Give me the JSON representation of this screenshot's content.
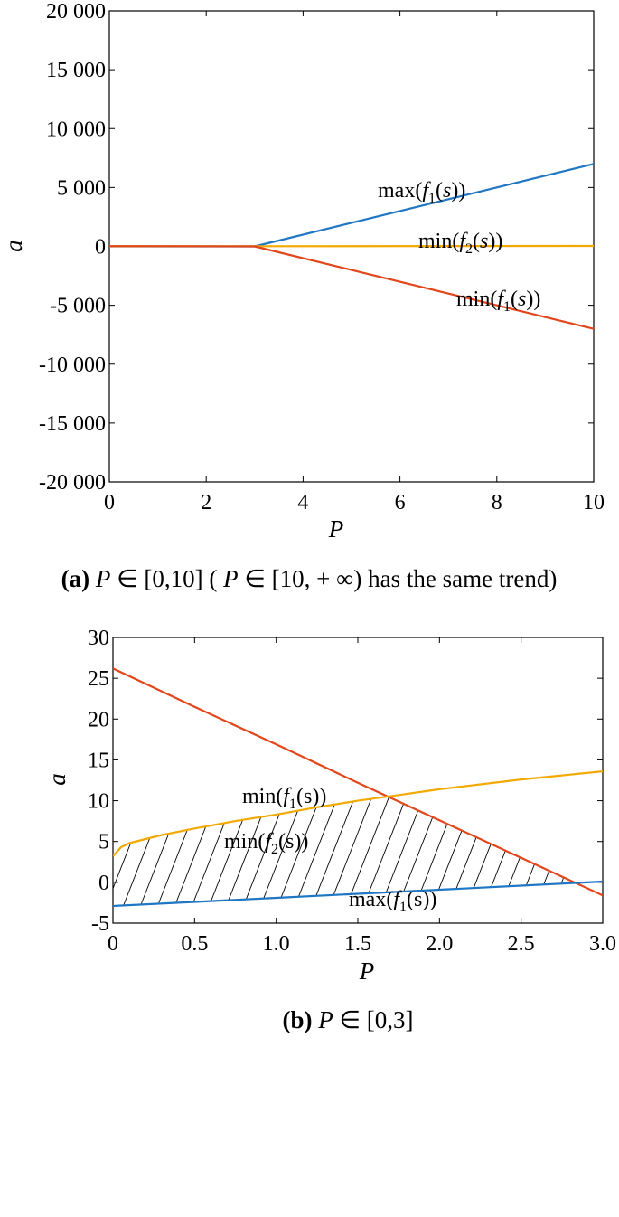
{
  "chart_data": [
    {
      "type": "line",
      "xlabel": "P",
      "ylabel": "a",
      "xlim": [
        0,
        10
      ],
      "ylim": [
        -20000,
        20000
      ],
      "xticks": [
        0,
        2,
        4,
        6,
        8,
        10
      ],
      "xtick_labels": [
        "0",
        "2",
        "4",
        "6",
        "8",
        "10"
      ],
      "yticks": [
        20000,
        15000,
        10000,
        5000,
        0,
        -5000,
        -10000,
        -15000,
        -20000
      ],
      "ytick_labels": [
        "20 000",
        "15 000",
        "10 000",
        "5 000",
        "0",
        "-5 000",
        "-10 000",
        "-15 000",
        "-20 000"
      ],
      "series": [
        {
          "name": "max(f1(s))",
          "color": "#1f77c4",
          "x": [
            0,
            3,
            10
          ],
          "y": [
            -3,
            0,
            7000
          ]
        },
        {
          "name": "min(f2(s))",
          "color": "#f2a900",
          "x": [
            0,
            3,
            10
          ],
          "y": [
            4,
            13,
            40
          ]
        },
        {
          "name": "min(f1(s))",
          "color": "#e2461a",
          "x": [
            0,
            3,
            10
          ],
          "y": [
            26,
            -1,
            -7000
          ]
        }
      ],
      "annotations": [
        {
          "pre": "max(",
          "f": "f",
          "sub": "1",
          "var": "s",
          "post": "))"
        },
        {
          "pre": "min(",
          "f": "f",
          "sub": "2",
          "var": "s",
          "post": "))"
        },
        {
          "pre": "min(",
          "f": "f",
          "sub": "1",
          "var": "s",
          "post": "))"
        }
      ],
      "caption": {
        "tag": "(a)",
        "var": "P",
        "rest1": " ∈ [0,10] ( ",
        "var2": "P",
        "rest2": " ∈ [10, + ∞) has the same trend)"
      }
    },
    {
      "type": "line",
      "xlabel": "P",
      "ylabel": "a",
      "xlim": [
        0,
        3
      ],
      "ylim": [
        -5,
        30
      ],
      "xticks": [
        0,
        0.5,
        1.0,
        1.5,
        2.0,
        2.5,
        3.0
      ],
      "xtick_labels": [
        "0",
        "0.5",
        "1.0",
        "1.5",
        "2.0",
        "2.5",
        "3.0"
      ],
      "yticks": [
        30,
        25,
        20,
        15,
        10,
        5,
        0,
        -5
      ],
      "ytick_labels": [
        "30",
        "25",
        "20",
        "15",
        "10",
        "5",
        "0",
        "-5"
      ],
      "series": [
        {
          "name": "min(f1(s))",
          "color": "#e2461a",
          "x": [
            0,
            0.5,
            1.0,
            1.5,
            2.0,
            2.5,
            3.0
          ],
          "y": [
            26.2,
            21.5,
            16.9,
            12.2,
            7.6,
            3.0,
            -1.6
          ]
        },
        {
          "name": "min(f2(s))",
          "color": "#f2a900",
          "x": [
            0,
            0.05,
            0.1,
            0.2,
            0.3,
            0.5,
            0.75,
            1.0,
            1.25,
            1.5,
            1.75,
            2.0,
            2.25,
            2.5,
            2.75,
            3.0
          ],
          "y": [
            3.2,
            4.3,
            4.8,
            5.3,
            5.8,
            6.6,
            7.5,
            8.3,
            9.2,
            10.0,
            10.7,
            11.4,
            12.0,
            12.6,
            13.1,
            13.6
          ]
        },
        {
          "name": "max(f1(s))",
          "color": "#1f77c4",
          "x": [
            0,
            0.5,
            1.0,
            1.5,
            2.0,
            2.5,
            3.0
          ],
          "y": [
            -2.9,
            -2.4,
            -1.9,
            -1.4,
            -0.9,
            -0.4,
            0.1
          ]
        }
      ],
      "hatched_region": "feasible region between max(f1(s)) and min(f2(s)), min(f1(s))",
      "annotations": [
        {
          "pre": "min(",
          "f": "f",
          "sub": "1",
          "var": "s",
          "post": "))"
        },
        {
          "pre": "min(",
          "f": "f",
          "sub": "2",
          "var": "s",
          "post": "))"
        },
        {
          "pre": "max(",
          "f": "f",
          "sub": "1",
          "var": "s",
          "post": "))"
        }
      ],
      "caption": {
        "tag": "(b)",
        "var": "P",
        "rest1": " ∈ [0,3]"
      }
    }
  ]
}
